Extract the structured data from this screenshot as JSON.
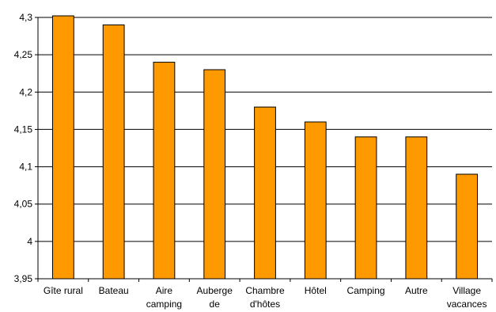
{
  "chart_data": {
    "type": "bar",
    "title": "",
    "xlabel": "",
    "ylabel": "",
    "categories": [
      [
        "Gîte rural"
      ],
      [
        "Bateau"
      ],
      [
        "Aire",
        "camping"
      ],
      [
        "Auberge",
        "de"
      ],
      [
        "Chambre",
        "d'hôtes"
      ],
      [
        "Hôtel"
      ],
      [
        "Camping"
      ],
      [
        "Autre"
      ],
      [
        "Village",
        "vacances"
      ]
    ],
    "values": [
      4.31,
      4.29,
      4.24,
      4.23,
      4.18,
      4.16,
      4.14,
      4.14,
      4.09
    ],
    "ylim": [
      3.95,
      4.3
    ],
    "yticks": [
      "3,95",
      "4",
      "4,05",
      "4,1",
      "4,15",
      "4,2",
      "4,25",
      "4,3"
    ],
    "grid": true,
    "legend": "none",
    "colors": {
      "bar_fill": "#ff9900",
      "bar_stroke": "#000000",
      "grid": "#000000",
      "axis": "#000000"
    }
  }
}
